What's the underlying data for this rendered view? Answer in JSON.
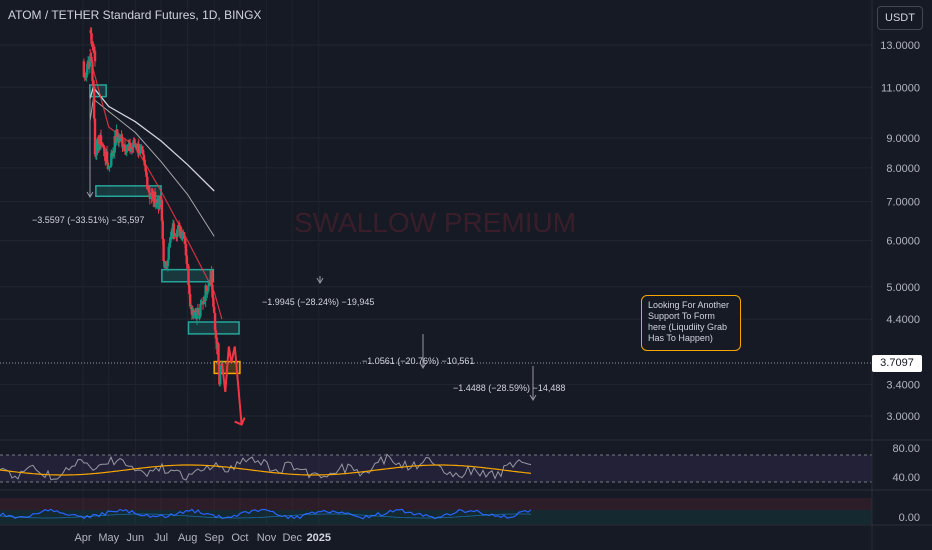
{
  "header": {
    "title": "ATOM / TETHER Standard Futures, 1D, BINGX",
    "unit_button": "USDT"
  },
  "current_price": "3.7097",
  "watermark": "SWALLOW PREMIUM",
  "annotation_note": "Looking For Another Support To Form here (Liqudiity Grab Has To Happen)",
  "measurements": [
    {
      "label": "−3.5597 (−33.51%) −35,597"
    },
    {
      "label": "−1.9945 (−28.24%) −19,945"
    },
    {
      "label": "−1.0561 (−20.76%) −10,561"
    },
    {
      "label": "−1.4488 (−28.59%) −14,488"
    }
  ],
  "colors": {
    "background": "#161a25",
    "up_candle": "#089981",
    "down_candle": "#f23645",
    "support_zone": "#26a69a",
    "target_zone": "#f7a600",
    "ma_fast": "#f23645",
    "ma_slow": "#d1d4dc",
    "rsi_line": "#9598a1",
    "rsi_ma": "#f7a600",
    "osc_line": "#2962ff"
  },
  "chart_data": {
    "type": "candlestick",
    "price_scale": "log",
    "y_ticks": [
      "13.0000",
      "11.0000",
      "9.0000",
      "8.0000",
      "7.0000",
      "6.0000",
      "5.0000",
      "4.4000",
      "3.4000",
      "3.0000"
    ],
    "x_ticks": [
      "Apr",
      "May",
      "Jun",
      "Jul",
      "Aug",
      "Sep",
      "Oct",
      "Nov",
      "Dec",
      "2025"
    ],
    "rsi_ticks": [
      "80.00",
      "40.00"
    ],
    "osc_ticks": [
      "0.00"
    ],
    "price_path": [
      {
        "date": "Mar 20",
        "price": 13.8
      },
      {
        "date": "Mar 27",
        "price": 12.3
      },
      {
        "date": "Apr 2",
        "price": 11.2
      },
      {
        "date": "Apr 10",
        "price": 12.6
      },
      {
        "date": "Apr 13",
        "price": 11.0
      },
      {
        "date": "Apr 15",
        "price": 8.6
      },
      {
        "date": "Apr 22",
        "price": 8.9
      },
      {
        "date": "May 1",
        "price": 8.0
      },
      {
        "date": "May 10",
        "price": 9.1
      },
      {
        "date": "May 25",
        "price": 8.6
      },
      {
        "date": "Jun 1",
        "price": 8.8
      },
      {
        "date": "Jun 8",
        "price": 8.5
      },
      {
        "date": "Jun 18",
        "price": 7.2
      },
      {
        "date": "Jul 1",
        "price": 6.9
      },
      {
        "date": "Jul 5",
        "price": 5.3
      },
      {
        "date": "Jul 15",
        "price": 6.3
      },
      {
        "date": "Jul 28",
        "price": 6.2
      },
      {
        "date": "Aug 5",
        "price": 4.6
      },
      {
        "date": "Aug 15",
        "price": 4.5
      },
      {
        "date": "Aug 28",
        "price": 5.3
      },
      {
        "date": "Sep 2",
        "price": 4.2
      },
      {
        "date": "Sep 5",
        "price": 3.9
      },
      {
        "date": "Sep 7",
        "price": 3.4
      },
      {
        "date": "Sep 10",
        "price": 3.71
      }
    ],
    "ma_fast": [
      {
        "date": "Mar 20",
        "price": 12.8
      },
      {
        "date": "Apr 13",
        "price": 11.8
      },
      {
        "date": "May 1",
        "price": 9.4
      },
      {
        "date": "Jun 1",
        "price": 8.7
      },
      {
        "date": "Jul 1",
        "price": 7.3
      },
      {
        "date": "Aug 1",
        "price": 6.0
      },
      {
        "date": "Sep 1",
        "price": 4.9
      },
      {
        "date": "Sep 10",
        "price": 4.4
      }
    ],
    "ma_slow": [
      {
        "date": "Mar 20",
        "price": 10.5
      },
      {
        "date": "Apr 13",
        "price": 11.0
      },
      {
        "date": "May 1",
        "price": 10.2
      },
      {
        "date": "Jun 1",
        "price": 9.6
      },
      {
        "date": "Jul 1",
        "price": 8.9
      },
      {
        "date": "Aug 1",
        "price": 8.1
      },
      {
        "date": "Sep 1",
        "price": 7.3
      }
    ],
    "ma_slower": [
      {
        "date": "Mar 20",
        "price": 9.6
      },
      {
        "date": "Apr 13",
        "price": 10.5
      },
      {
        "date": "May 1",
        "price": 10.0
      },
      {
        "date": "Jun 1",
        "price": 9.2
      },
      {
        "date": "Jul 1",
        "price": 8.2
      },
      {
        "date": "Aug 1",
        "price": 7.2
      },
      {
        "date": "Sep 1",
        "price": 6.1
      }
    ],
    "support_zones": [
      {
        "from": "Mar 20",
        "to": "Apr 28",
        "low": 10.6,
        "high": 11.1
      },
      {
        "from": "Apr 16",
        "to": "Jul 1",
        "low": 7.15,
        "high": 7.45
      },
      {
        "from": "Jul 2",
        "to": "Aug 31",
        "low": 5.1,
        "high": 5.35
      },
      {
        "from": "Aug 2",
        "to": "Sep 30",
        "low": 4.15,
        "high": 4.35
      }
    ],
    "target_zone": {
      "from": "Sep 1",
      "to": "Oct 1",
      "low": 3.55,
      "high": 3.72
    },
    "projection": [
      {
        "date": "Sep 10",
        "price": 3.71
      },
      {
        "date": "Sep 14",
        "price": 3.3
      },
      {
        "date": "Sep 18",
        "price": 3.95
      },
      {
        "date": "Sep 21",
        "price": 3.7
      },
      {
        "date": "Sep 25",
        "price": 3.95
      },
      {
        "date": "Oct 3",
        "price": 2.9
      }
    ]
  }
}
